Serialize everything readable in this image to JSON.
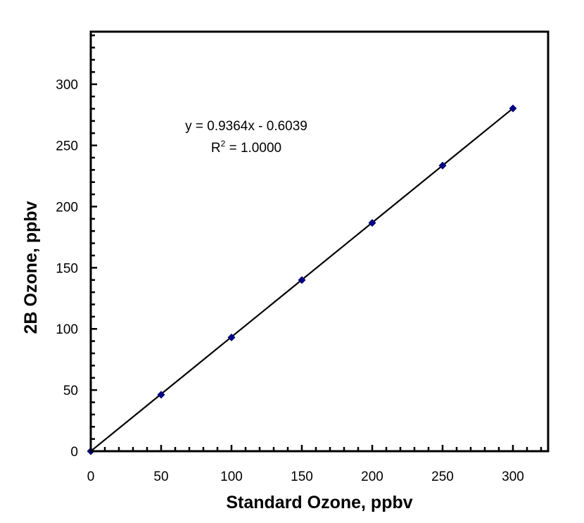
{
  "chart_data": {
    "type": "scatter",
    "title": "",
    "xlabel": "Standard Ozone, ppbv",
    "ylabel": "2B Ozone, ppbv",
    "xlim": [
      0,
      325
    ],
    "ylim": [
      0,
      343
    ],
    "xticks": [
      0,
      50,
      100,
      150,
      200,
      250,
      300
    ],
    "yticks": [
      0,
      50,
      100,
      150,
      200,
      250,
      300
    ],
    "minor_tick_step": 10,
    "grid": false,
    "legend": "none",
    "series": [
      {
        "marker": "diamond",
        "color": "#000080",
        "x": [
          0,
          50,
          100,
          150,
          200,
          250,
          300
        ],
        "y": [
          0,
          46.2,
          93.0,
          139.9,
          186.7,
          233.5,
          280.3
        ]
      }
    ],
    "trendline": {
      "slope": 0.9364,
      "intercept": -0.6039,
      "x_range": [
        0,
        300
      ],
      "color": "#000000"
    },
    "annotations": {
      "equation": "y = 0.9364x - 0.6039",
      "r2_prefix": "R",
      "r2_sup": "2",
      "r2_value": " = 1.0000"
    }
  }
}
